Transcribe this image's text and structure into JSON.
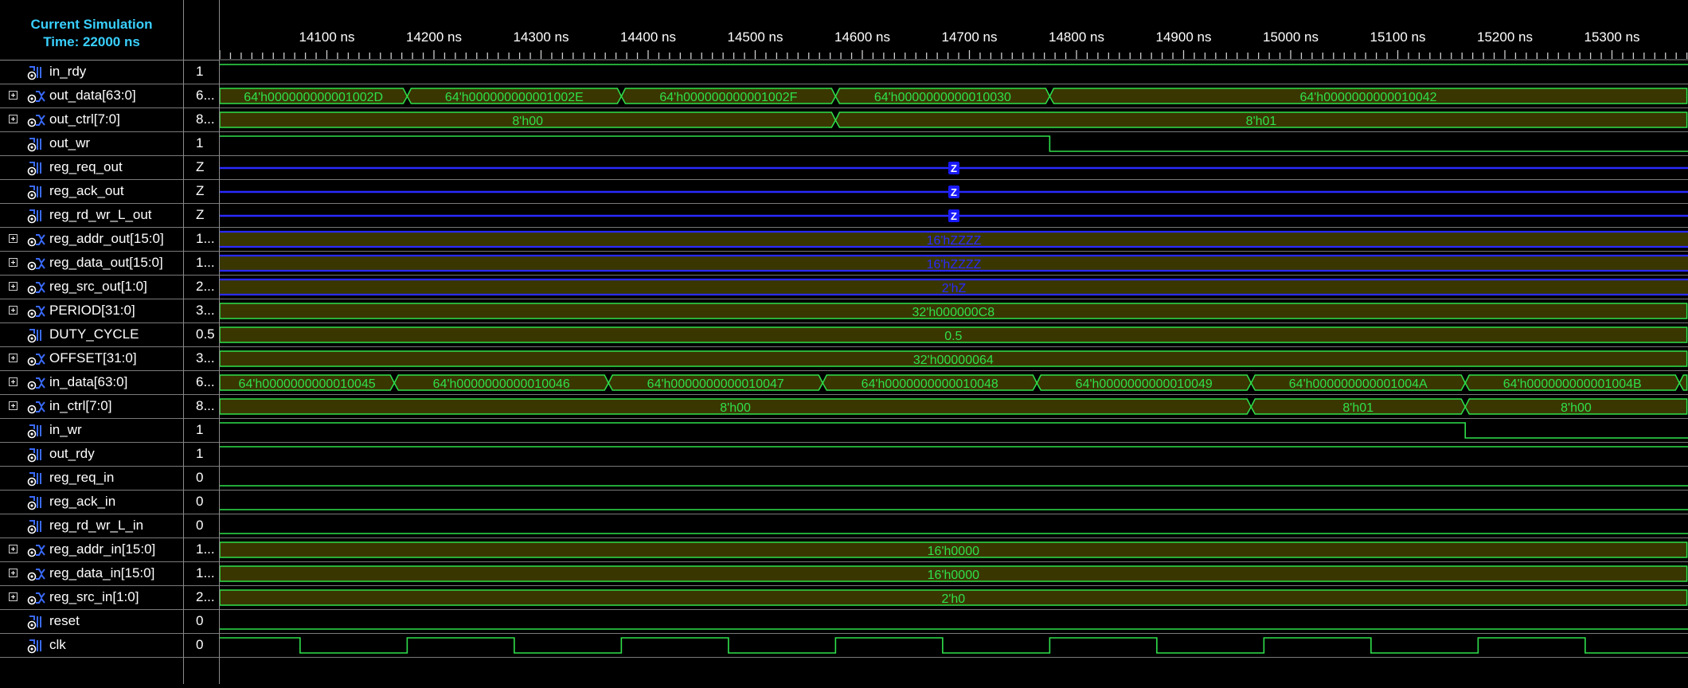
{
  "header": {
    "line1": "Current Simulation",
    "line2": "Time: 22000 ns"
  },
  "timeline": {
    "ticks": [
      {
        "t": 14100,
        "label": "14100 ns"
      },
      {
        "t": 14200,
        "label": "14200 ns"
      },
      {
        "t": 14300,
        "label": "14300 ns"
      },
      {
        "t": 14400,
        "label": "14400 ns"
      },
      {
        "t": 14500,
        "label": "14500 ns"
      },
      {
        "t": 14600,
        "label": "14600 ns"
      },
      {
        "t": 14700,
        "label": "14700 ns"
      },
      {
        "t": 14800,
        "label": "14800 ns"
      },
      {
        "t": 14900,
        "label": "14900 ns"
      },
      {
        "t": 15000,
        "label": "15000 ns"
      },
      {
        "t": 15100,
        "label": "15100 ns"
      },
      {
        "t": 15200,
        "label": "15200 ns"
      },
      {
        "t": 15300,
        "label": "15300 ns"
      }
    ],
    "view_start_ns": 14000,
    "view_end_ns": 15370,
    "clock_period_ns": 200
  },
  "colors": {
    "signal": "#2fe04b",
    "bus_fill": "#3a3600",
    "z_line": "#2a2aff",
    "header_text": "#39d0ff",
    "grid_line": "#7a7a7a"
  },
  "signals": [
    {
      "name": "in_rdy",
      "value": "1",
      "bus": false,
      "kind": "bit",
      "level": 1
    },
    {
      "name": "out_data[63:0]",
      "value": "6...",
      "bus": true,
      "kind": "bus",
      "segments": [
        {
          "start": 14000,
          "end": 14175,
          "label": "64'h000000000001002D"
        },
        {
          "start": 14175,
          "end": 14375,
          "label": "64'h000000000001002E"
        },
        {
          "start": 14375,
          "end": 14575,
          "label": "64'h000000000001002F"
        },
        {
          "start": 14575,
          "end": 14775,
          "label": "64'h0000000000010030"
        },
        {
          "start": 14775,
          "end": 15370,
          "label": "64'h0000000000010042"
        }
      ]
    },
    {
      "name": "out_ctrl[7:0]",
      "value": "8...",
      "bus": true,
      "kind": "bus",
      "segments": [
        {
          "start": 14000,
          "end": 14575,
          "label": "8'h00"
        },
        {
          "start": 14575,
          "end": 15370,
          "label": "8'h01"
        }
      ]
    },
    {
      "name": "out_wr",
      "value": "1",
      "bus": false,
      "kind": "bit",
      "changes": [
        {
          "t": 14000,
          "level": 1
        },
        {
          "t": 14775,
          "level": 0
        }
      ]
    },
    {
      "name": "reg_req_out",
      "value": "Z",
      "bus": false,
      "kind": "z",
      "label": "Z"
    },
    {
      "name": "reg_ack_out",
      "value": "Z",
      "bus": false,
      "kind": "z",
      "label": "Z"
    },
    {
      "name": "reg_rd_wr_L_out",
      "value": "Z",
      "bus": false,
      "kind": "z",
      "label": "Z"
    },
    {
      "name": "reg_addr_out[15:0]",
      "value": "1...",
      "bus": true,
      "kind": "zbus",
      "label": "16'hZZZZ"
    },
    {
      "name": "reg_data_out[15:0]",
      "value": "1...",
      "bus": true,
      "kind": "zbus",
      "label": "16'hZZZZ"
    },
    {
      "name": "reg_src_out[1:0]",
      "value": "2...",
      "bus": true,
      "kind": "zbus",
      "label": "2'hZ"
    },
    {
      "name": "PERIOD[31:0]",
      "value": "3...",
      "bus": true,
      "kind": "bus",
      "segments": [
        {
          "start": 14000,
          "end": 15370,
          "label": "32'h000000C8"
        }
      ]
    },
    {
      "name": "DUTY_CYCLE",
      "value": "0.5",
      "bus": false,
      "kind": "bus",
      "segments": [
        {
          "start": 14000,
          "end": 15370,
          "label": "0.5"
        }
      ]
    },
    {
      "name": "OFFSET[31:0]",
      "value": "3...",
      "bus": true,
      "kind": "bus",
      "segments": [
        {
          "start": 14000,
          "end": 15370,
          "label": "32'h00000064"
        }
      ]
    },
    {
      "name": "in_data[63:0]",
      "value": "6...",
      "bus": true,
      "kind": "bus",
      "segments": [
        {
          "start": 14000,
          "end": 14163,
          "label": "64'h0000000000010045"
        },
        {
          "start": 14163,
          "end": 14363,
          "label": "64'h0000000000010046"
        },
        {
          "start": 14363,
          "end": 14563,
          "label": "64'h0000000000010047"
        },
        {
          "start": 14563,
          "end": 14763,
          "label": "64'h0000000000010048"
        },
        {
          "start": 14763,
          "end": 14963,
          "label": "64'h0000000000010049"
        },
        {
          "start": 14963,
          "end": 15163,
          "label": "64'h000000000001004A"
        },
        {
          "start": 15163,
          "end": 15363,
          "label": "64'h000000000001004B"
        },
        {
          "start": 15363,
          "end": 15370,
          "label": ""
        }
      ]
    },
    {
      "name": "in_ctrl[7:0]",
      "value": "8...",
      "bus": true,
      "kind": "bus",
      "segments": [
        {
          "start": 14000,
          "end": 14963,
          "label": "8'h00"
        },
        {
          "start": 14963,
          "end": 15163,
          "label": "8'h01"
        },
        {
          "start": 15163,
          "end": 15370,
          "label": "8'h00"
        }
      ]
    },
    {
      "name": "in_wr",
      "value": "1",
      "bus": false,
      "kind": "bit",
      "changes": [
        {
          "t": 14000,
          "level": 1
        },
        {
          "t": 15163,
          "level": 0
        }
      ]
    },
    {
      "name": "out_rdy",
      "value": "1",
      "bus": false,
      "kind": "bit",
      "level": 1
    },
    {
      "name": "reg_req_in",
      "value": "0",
      "bus": false,
      "kind": "bit",
      "level": 0
    },
    {
      "name": "reg_ack_in",
      "value": "0",
      "bus": false,
      "kind": "bit",
      "level": 0
    },
    {
      "name": "reg_rd_wr_L_in",
      "value": "0",
      "bus": false,
      "kind": "bit",
      "level": 0
    },
    {
      "name": "reg_addr_in[15:0]",
      "value": "1...",
      "bus": true,
      "kind": "bus",
      "segments": [
        {
          "start": 14000,
          "end": 15370,
          "label": "16'h0000"
        }
      ]
    },
    {
      "name": "reg_data_in[15:0]",
      "value": "1...",
      "bus": true,
      "kind": "bus",
      "segments": [
        {
          "start": 14000,
          "end": 15370,
          "label": "16'h0000"
        }
      ]
    },
    {
      "name": "reg_src_in[1:0]",
      "value": "2...",
      "bus": true,
      "kind": "bus",
      "segments": [
        {
          "start": 14000,
          "end": 15370,
          "label": "2'h0"
        }
      ]
    },
    {
      "name": "reset",
      "value": "0",
      "bus": false,
      "kind": "bit",
      "level": 0
    },
    {
      "name": "clk",
      "value": "0",
      "bus": false,
      "kind": "clock",
      "first_fall": 14075,
      "high_ns": 100
    }
  ]
}
